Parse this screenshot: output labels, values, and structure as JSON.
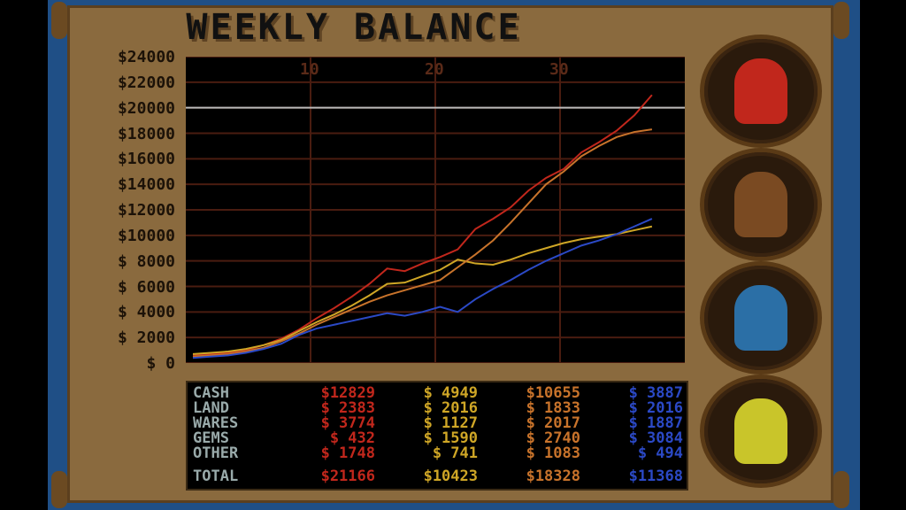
{
  "game": {
    "title": "WEEKLY BALANCE"
  },
  "chart_data": {
    "type": "line",
    "x_ticks": [
      "10",
      "20",
      "30"
    ],
    "y_ticks": [
      "$24000",
      "$22000",
      "$20000",
      "$18000",
      "$16000",
      "$14000",
      "$12000",
      "$10000",
      "$ 8000",
      "$ 6000",
      "$ 4000",
      "$ 2000",
      "$    0"
    ],
    "ylim": [
      0,
      24000
    ],
    "xlim": [
      0,
      40
    ],
    "grid": true,
    "threshold_line": 20000,
    "series": [
      {
        "color": "#c1271c",
        "values": [
          600,
          700,
          800,
          1000,
          1400,
          1900,
          2600,
          3500,
          4300,
          5200,
          6200,
          7400,
          7200,
          7800,
          8300,
          8900,
          10500,
          11300,
          12200,
          13500,
          14500,
          15200,
          16500,
          17300,
          18200,
          19400,
          21000
        ]
      },
      {
        "color": "#cfa626",
        "values": [
          700,
          800,
          900,
          1100,
          1400,
          1800,
          2500,
          3200,
          3800,
          4500,
          5300,
          6200,
          6300,
          6800,
          7300,
          8100,
          7800,
          7700,
          8100,
          8600,
          9000,
          9400,
          9700,
          9900,
          10100,
          10400,
          10700
        ]
      },
      {
        "color": "#c8732b",
        "values": [
          500,
          600,
          700,
          900,
          1200,
          1700,
          2300,
          3000,
          3600,
          4200,
          4800,
          5300,
          5700,
          6100,
          6500,
          7500,
          8500,
          9600,
          11000,
          12500,
          14000,
          15000,
          16200,
          17000,
          17700,
          18100,
          18300
        ]
      },
      {
        "color": "#2b49c6",
        "values": [
          400,
          500,
          600,
          800,
          1100,
          1500,
          2200,
          2700,
          3000,
          3300,
          3600,
          3900,
          3700,
          4000,
          4400,
          4000,
          5000,
          5800,
          6500,
          7300,
          8000,
          8600,
          9200,
          9600,
          10100,
          10700,
          11300
        ]
      }
    ]
  },
  "stats": {
    "labels": [
      "CASH",
      "LAND",
      "WARES",
      "GEMS",
      "OTHER"
    ],
    "total_label": "TOTAL",
    "players": [
      {
        "color": "#c1271c",
        "values": [
          "$12829",
          "$ 2383",
          "$ 3774",
          "$  432",
          "$ 1748"
        ],
        "total": "$21166"
      },
      {
        "color": "#cfa626",
        "values": [
          "$ 4949",
          "$ 2016",
          "$ 1127",
          "$ 1590",
          "$  741"
        ],
        "total": "$10423"
      },
      {
        "color": "#c8732b",
        "values": [
          "$10655",
          "$ 1833",
          "$ 2017",
          "$ 2740",
          "$ 1083"
        ],
        "total": "$18328"
      },
      {
        "color": "#2b49c6",
        "values": [
          "$ 3887",
          "$ 2016",
          "$ 1887",
          "$ 3084",
          "$  494"
        ],
        "total": "$11368"
      }
    ]
  },
  "portraits": [
    {
      "name": "red-creature-portrait"
    },
    {
      "name": "fuzzy-creature-portrait"
    },
    {
      "name": "alien-creature-portrait"
    },
    {
      "name": "yellow-creature-portrait"
    }
  ]
}
